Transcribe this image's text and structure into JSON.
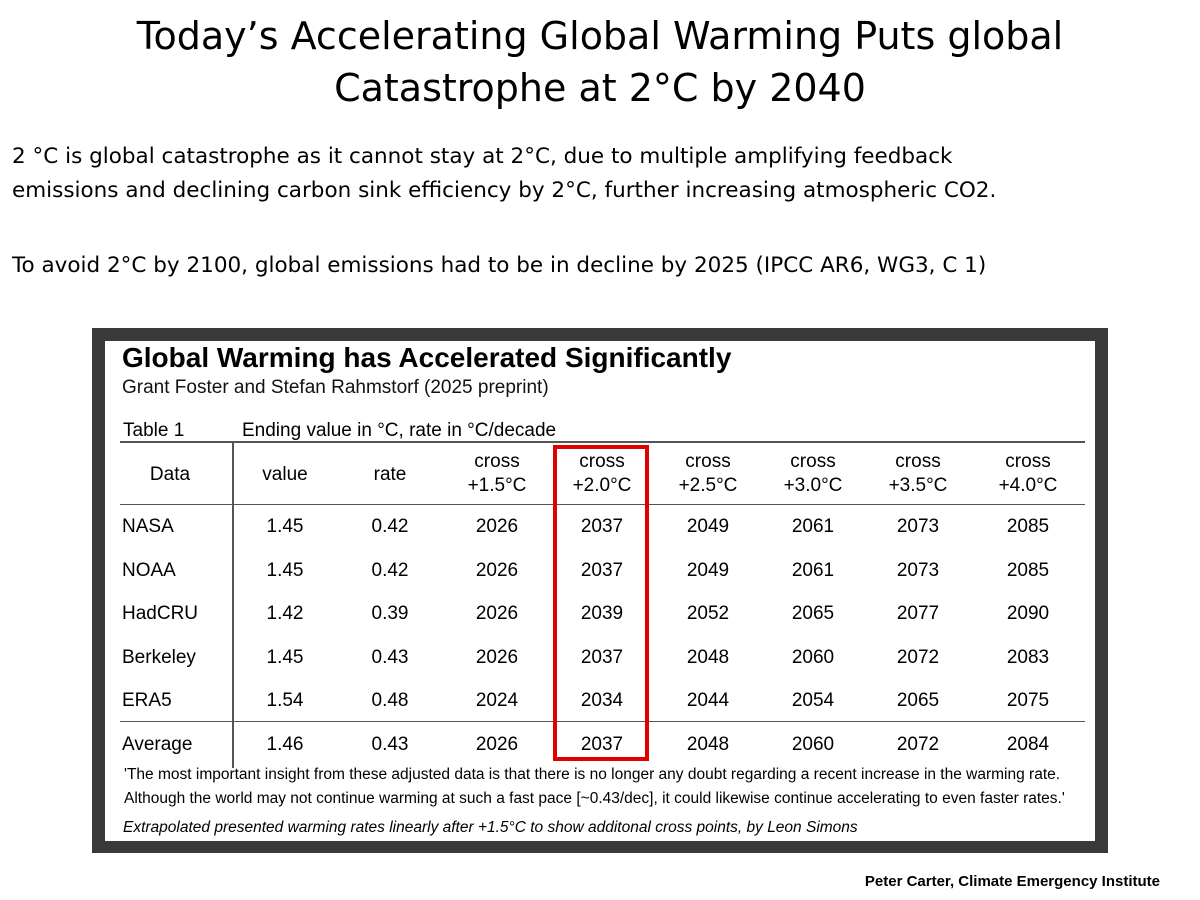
{
  "slide": {
    "title_line1": "Today’s Accelerating Global Warming Puts global",
    "title_line2": "Catastrophe at 2°C by 2040",
    "para1_line1": "2 °C is global catastrophe as it cannot stay at  2°C, due to multiple amplifying feedback",
    "para1_line2": "emissions and declining carbon sink efficiency by 2°C, further increasing atmospheric CO2.",
    "para2": "To avoid 2°C by 2100, global emissions had to be in decline by 2025 (IPCC AR6, WG3, C 1)",
    "credit": "Peter Carter, Climate Emergency Institute"
  },
  "figure": {
    "title": "Global Warming has Accelerated Significantly",
    "subtitle": "Grant Foster and Stefan Rahmstorf (2025 preprint)",
    "table_label": "Table 1",
    "table_caption": "Ending value in °C, rate in °C/decade",
    "headers": [
      [
        "Data",
        ""
      ],
      [
        "value",
        ""
      ],
      [
        "rate",
        ""
      ],
      [
        "cross",
        "+1.5°C"
      ],
      [
        "cross",
        "+2.0°C"
      ],
      [
        "cross",
        "+2.5°C"
      ],
      [
        "cross",
        "+3.0°C"
      ],
      [
        "cross",
        "+3.5°C"
      ],
      [
        "cross",
        "+4.0°C"
      ]
    ],
    "rows": [
      [
        "NASA",
        "1.45",
        "0.42",
        "2026",
        "2037",
        "2049",
        "2061",
        "2073",
        "2085"
      ],
      [
        "NOAA",
        "1.45",
        "0.42",
        "2026",
        "2037",
        "2049",
        "2061",
        "2073",
        "2085"
      ],
      [
        "HadCRU",
        "1.42",
        "0.39",
        "2026",
        "2039",
        "2052",
        "2065",
        "2077",
        "2090"
      ],
      [
        "Berkeley",
        "1.45",
        "0.43",
        "2026",
        "2037",
        "2048",
        "2060",
        "2072",
        "2083"
      ],
      [
        "ERA5",
        "1.54",
        "0.48",
        "2024",
        "2034",
        "2044",
        "2054",
        "2065",
        "2075"
      ],
      [
        "Average",
        "1.46",
        "0.43",
        "2026",
        "2037",
        "2048",
        "2060",
        "2072",
        "2084"
      ]
    ],
    "quote_line1": "'The most important insight from these adjusted data is that there is no longer any doubt regarding a recent increase in the warming rate.",
    "quote_line2": "Although the world may not continue warming at such a fast pace [~0.43/dec], it could likewise continue accelerating to even faster rates.'",
    "footnote": "Extrapolated presented warming rates linearly after +1.5°C to show additonal cross points, by Leon Simons",
    "highlight_color": "#e00000"
  }
}
